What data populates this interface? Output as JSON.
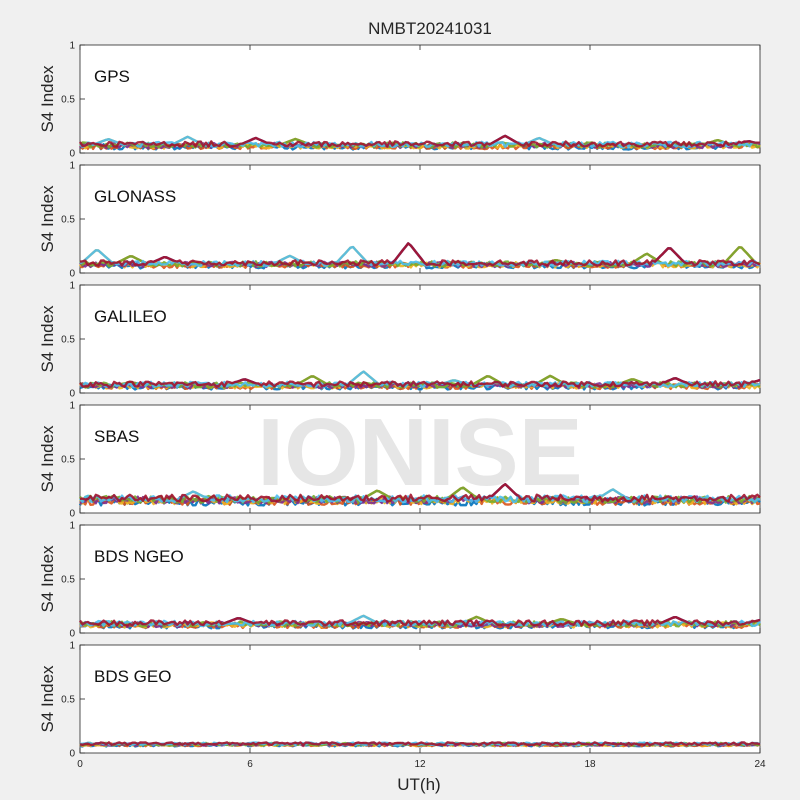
{
  "figure": {
    "title": "NMBT20241031",
    "watermark": "IONISE"
  },
  "chart_data": {
    "type": "scatter",
    "x_label": "UT(h)",
    "x_range": [
      0,
      24
    ],
    "x_ticks": [
      0,
      6,
      12,
      18,
      24
    ],
    "y_label": "S4 Index",
    "y_range": [
      0,
      1
    ],
    "y_ticks": [
      "0",
      "0.5",
      "1"
    ],
    "series_colors": [
      "#0072BD",
      "#D95319",
      "#EDB120",
      "#7E2F8E",
      "#77AC30",
      "#4DBEEE",
      "#A2142F"
    ],
    "panels": [
      {
        "name": "GPS",
        "baseline": 0.07,
        "spread": 0.03,
        "bumps": [
          [
            1.0,
            0.13
          ],
          [
            3.8,
            0.15
          ],
          [
            6.2,
            0.14
          ],
          [
            7.6,
            0.13
          ],
          [
            15.0,
            0.16
          ],
          [
            16.2,
            0.14
          ],
          [
            22.5,
            0.12
          ],
          [
            23.6,
            0.11
          ]
        ]
      },
      {
        "name": "GLONASS",
        "baseline": 0.08,
        "spread": 0.03,
        "bumps": [
          [
            0.6,
            0.22
          ],
          [
            1.8,
            0.16
          ],
          [
            3.0,
            0.15
          ],
          [
            7.4,
            0.16
          ],
          [
            9.6,
            0.25
          ],
          [
            11.6,
            0.28
          ],
          [
            16.8,
            0.12
          ],
          [
            20.0,
            0.18
          ],
          [
            20.8,
            0.24
          ],
          [
            23.3,
            0.25
          ]
        ]
      },
      {
        "name": "GALILEO",
        "baseline": 0.07,
        "spread": 0.03,
        "bumps": [
          [
            1.8,
            0.1
          ],
          [
            5.8,
            0.13
          ],
          [
            8.2,
            0.16
          ],
          [
            10.0,
            0.2
          ],
          [
            13.2,
            0.12
          ],
          [
            14.4,
            0.16
          ],
          [
            16.6,
            0.16
          ],
          [
            19.5,
            0.13
          ],
          [
            21.0,
            0.14
          ],
          [
            24.0,
            0.12
          ]
        ]
      },
      {
        "name": "SBAS",
        "baseline": 0.12,
        "spread": 0.04,
        "bumps": [
          [
            4.0,
            0.2
          ],
          [
            10.5,
            0.21
          ],
          [
            13.5,
            0.24
          ],
          [
            15.0,
            0.27
          ],
          [
            18.8,
            0.22
          ]
        ]
      },
      {
        "name": "BDS NGEO",
        "baseline": 0.08,
        "spread": 0.03,
        "bumps": [
          [
            5.6,
            0.14
          ],
          [
            10.0,
            0.16
          ],
          [
            14.0,
            0.15
          ],
          [
            17.0,
            0.13
          ],
          [
            21.0,
            0.15
          ],
          [
            24.0,
            0.12
          ]
        ]
      },
      {
        "name": "BDS GEO",
        "baseline": 0.08,
        "spread": 0.015,
        "bumps": []
      }
    ]
  }
}
